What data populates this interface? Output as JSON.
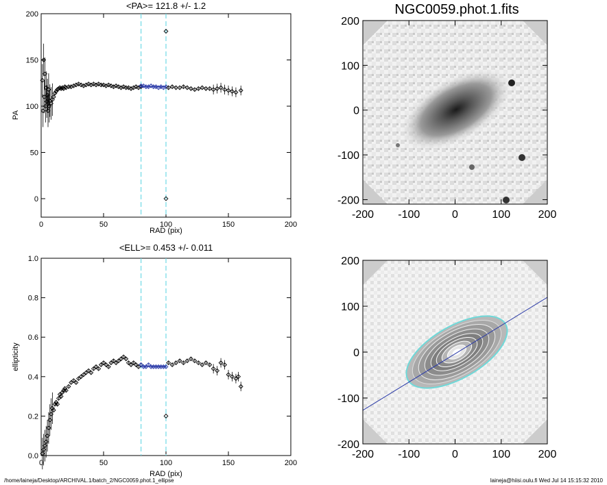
{
  "chart_data": [
    {
      "type": "scatter",
      "title": "<PA>= 121.8 +/-   1.2",
      "xlabel": "RAD (pix)",
      "ylabel": "PA",
      "xlim": [
        0,
        200
      ],
      "ylim": [
        -20,
        200
      ],
      "xticks": [
        "0",
        "50",
        "100",
        "150",
        "200"
      ],
      "yticks": [
        "0",
        "50",
        "100",
        "150",
        "200"
      ],
      "vlines": [
        80,
        100
      ],
      "outliers": [
        {
          "x": 100,
          "y": 181
        },
        {
          "x": 100,
          "y": 0
        }
      ],
      "series": [
        {
          "name": "profile",
          "color": "#000000",
          "points": [
            [
              1,
              128
            ],
            [
              1.5,
              95
            ],
            [
              2,
              150
            ],
            [
              2.5,
              110
            ],
            [
              3,
              135
            ],
            [
              3.5,
              100
            ],
            [
              4,
              120
            ],
            [
              4.5,
              105
            ],
            [
              5,
              112
            ],
            [
              5.5,
              95
            ],
            [
              6,
              118
            ],
            [
              6.5,
              100
            ],
            [
              7,
              106
            ],
            [
              8,
              103
            ],
            [
              9,
              107
            ],
            [
              10,
              110
            ],
            [
              11,
              114
            ],
            [
              12,
              116
            ],
            [
              13,
              118
            ],
            [
              14,
              119
            ],
            [
              15,
              120
            ],
            [
              16,
              119
            ],
            [
              17,
              120
            ],
            [
              18,
              119
            ],
            [
              19,
              121
            ],
            [
              20,
              120
            ],
            [
              22,
              121
            ],
            [
              24,
              121
            ],
            [
              26,
              122
            ],
            [
              28,
              123
            ],
            [
              30,
              124
            ],
            [
              32,
              123
            ],
            [
              34,
              122
            ],
            [
              36,
              123
            ],
            [
              38,
              124
            ],
            [
              40,
              123
            ],
            [
              42,
              124
            ],
            [
              44,
              123
            ],
            [
              46,
              124
            ],
            [
              48,
              123
            ],
            [
              50,
              123
            ],
            [
              52,
              122
            ],
            [
              54,
              123
            ],
            [
              56,
              122
            ],
            [
              58,
              121
            ],
            [
              60,
              122
            ],
            [
              62,
              121
            ],
            [
              64,
              120
            ],
            [
              66,
              121
            ],
            [
              68,
              120
            ],
            [
              70,
              120
            ],
            [
              72,
              119
            ],
            [
              74,
              120
            ],
            [
              76,
              121
            ],
            [
              78,
              120
            ],
            [
              80,
              121
            ]
          ]
        },
        {
          "name": "fit range",
          "color": "#2a3aa8",
          "points": [
            [
              80,
              122
            ],
            [
              82,
              122
            ],
            [
              84,
              121
            ],
            [
              86,
              121
            ],
            [
              88,
              122
            ],
            [
              90,
              121
            ],
            [
              92,
              121
            ],
            [
              94,
              120
            ],
            [
              96,
              121
            ],
            [
              98,
              120
            ],
            [
              100,
              121
            ]
          ]
        },
        {
          "name": "outer",
          "color": "#000000",
          "points": [
            [
              102,
              120
            ],
            [
              105,
              121
            ],
            [
              108,
              120
            ],
            [
              111,
              120
            ],
            [
              114,
              121
            ],
            [
              117,
              120
            ],
            [
              120,
              119
            ],
            [
              123,
              118
            ],
            [
              126,
              119
            ],
            [
              129,
              120
            ],
            [
              132,
              119
            ],
            [
              135,
              119
            ],
            [
              138,
              118
            ],
            [
              141,
              119
            ],
            [
              144,
              120
            ],
            [
              147,
              118
            ],
            [
              150,
              117
            ],
            [
              153,
              116
            ],
            [
              156,
              115
            ],
            [
              160,
              117
            ]
          ]
        }
      ]
    },
    {
      "type": "image",
      "title": "NGC0059.phot.1.fits",
      "xlim": [
        -200,
        200
      ],
      "ylim": [
        -210,
        200
      ],
      "xticks": [
        "-200",
        "-100",
        "0",
        "100",
        "200"
      ],
      "yticks": [
        "200",
        "100",
        "0",
        "-100",
        "-200"
      ]
    },
    {
      "type": "scatter",
      "title": "<ELL>= 0.453 +/-  0.011",
      "xlabel": "RAD (pix)",
      "ylabel": "ellipticity",
      "xlim": [
        0,
        200
      ],
      "ylim": [
        0,
        1.0
      ],
      "xticks": [
        "0",
        "50",
        "100",
        "150",
        "200"
      ],
      "yticks": [
        "0.0",
        "0.2",
        "0.4",
        "0.6",
        "0.8",
        "1.0"
      ],
      "vlines": [
        80,
        100
      ],
      "outliers": [
        {
          "x": 100,
          "y": 0.2
        }
      ],
      "series": [
        {
          "name": "profile",
          "color": "#000000",
          "points": [
            [
              1,
              0.01
            ],
            [
              2,
              0.03
            ],
            [
              3,
              0.05
            ],
            [
              4,
              0.07
            ],
            [
              5,
              0.1
            ],
            [
              6,
              0.14
            ],
            [
              7,
              0.18
            ],
            [
              8,
              0.21
            ],
            [
              9,
              0.24
            ],
            [
              10,
              0.23
            ],
            [
              11,
              0.26
            ],
            [
              12,
              0.27
            ],
            [
              13,
              0.26
            ],
            [
              14,
              0.29
            ],
            [
              15,
              0.31
            ],
            [
              16,
              0.3
            ],
            [
              17,
              0.32
            ],
            [
              18,
              0.33
            ],
            [
              19,
              0.34
            ],
            [
              20,
              0.33
            ],
            [
              22,
              0.35
            ],
            [
              24,
              0.37
            ],
            [
              26,
              0.38
            ],
            [
              28,
              0.37
            ],
            [
              30,
              0.39
            ],
            [
              32,
              0.4
            ],
            [
              34,
              0.41
            ],
            [
              36,
              0.42
            ],
            [
              38,
              0.43
            ],
            [
              40,
              0.42
            ],
            [
              42,
              0.44
            ],
            [
              44,
              0.45
            ],
            [
              46,
              0.44
            ],
            [
              48,
              0.46
            ],
            [
              50,
              0.47
            ],
            [
              52,
              0.46
            ],
            [
              54,
              0.45
            ],
            [
              56,
              0.47
            ],
            [
              58,
              0.48
            ],
            [
              60,
              0.47
            ],
            [
              62,
              0.48
            ],
            [
              64,
              0.49
            ],
            [
              66,
              0.5
            ],
            [
              68,
              0.49
            ],
            [
              70,
              0.47
            ],
            [
              72,
              0.46
            ],
            [
              74,
              0.47
            ],
            [
              76,
              0.46
            ],
            [
              78,
              0.45
            ],
            [
              80,
              0.46
            ]
          ]
        },
        {
          "name": "fit range",
          "color": "#2a3aa8",
          "points": [
            [
              80,
              0.46
            ],
            [
              82,
              0.45
            ],
            [
              84,
              0.45
            ],
            [
              86,
              0.46
            ],
            [
              88,
              0.45
            ],
            [
              90,
              0.45
            ],
            [
              92,
              0.45
            ],
            [
              94,
              0.45
            ],
            [
              96,
              0.45
            ],
            [
              98,
              0.45
            ],
            [
              100,
              0.45
            ]
          ]
        },
        {
          "name": "outer",
          "color": "#000000",
          "points": [
            [
              102,
              0.47
            ],
            [
              105,
              0.46
            ],
            [
              108,
              0.47
            ],
            [
              111,
              0.48
            ],
            [
              114,
              0.47
            ],
            [
              117,
              0.48
            ],
            [
              120,
              0.49
            ],
            [
              123,
              0.48
            ],
            [
              126,
              0.47
            ],
            [
              129,
              0.46
            ],
            [
              132,
              0.47
            ],
            [
              135,
              0.46
            ],
            [
              138,
              0.44
            ],
            [
              141,
              0.43
            ],
            [
              144,
              0.47
            ],
            [
              147,
              0.46
            ],
            [
              150,
              0.41
            ],
            [
              153,
              0.4
            ],
            [
              156,
              0.39
            ],
            [
              158,
              0.4
            ],
            [
              160,
              0.35
            ]
          ]
        }
      ]
    },
    {
      "type": "image",
      "title": "",
      "xlim": [
        -200,
        200
      ],
      "ylim": [
        -200,
        200
      ],
      "xticks": [
        "-200",
        "-100",
        "0",
        "100",
        "200"
      ],
      "yticks": [
        "200",
        "100",
        "0",
        "-100",
        "-200"
      ]
    }
  ],
  "footer": {
    "path": "/home/laineja/Desktop/ARCHIVAL.1/batch_2/NGC0059.phot.1_ellipse",
    "user_time": "laineja@hiisi.oulu.fi  Wed Jul 14 15:15:32 2010"
  }
}
